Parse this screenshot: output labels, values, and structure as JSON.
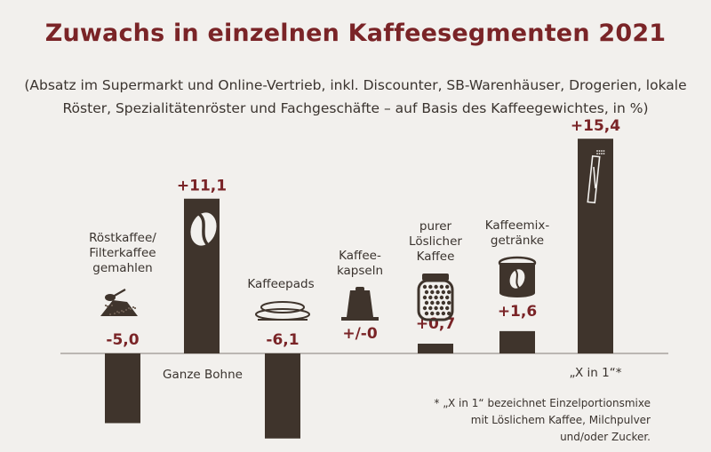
{
  "chart_data": {
    "type": "bar",
    "title": "Zuwachs in einzelnen Kaffeesegmenten 2021",
    "subtitle_line1": "(Absatz im Supermarkt und Online-Vertrieb, inkl. Discounter, SB-Warenhäuser, Drogerien, lokale",
    "subtitle_line2": "Röster, Spezialitätenröster und Fachgeschäfte – auf Basis des Kaffeegewichtes, in %)",
    "ylim": [
      -6.5,
      16
    ],
    "grid": false,
    "bars": [
      {
        "key": "roest",
        "value": -5.0,
        "value_label": "-5,0",
        "category_lines": [
          "Röstkaffee/",
          "Filterkaffee",
          "gemahlen"
        ],
        "icon": "ground-coffee-icon"
      },
      {
        "key": "bohne",
        "value": 11.1,
        "value_label": "+11,1",
        "category_lines": [
          "Ganze Bohne"
        ],
        "icon": "coffee-bean-icon"
      },
      {
        "key": "pads",
        "value": -6.1,
        "value_label": "-6,1",
        "category_lines": [
          "Kaffeepads"
        ],
        "icon": "coffee-pad-icon"
      },
      {
        "key": "kapseln",
        "value": 0.0,
        "value_label": "+/-0",
        "category_lines": [
          "Kaffee-",
          "kapseln"
        ],
        "icon": "coffee-capsule-icon"
      },
      {
        "key": "loeslich",
        "value": 0.7,
        "value_label": "+0,7",
        "category_lines": [
          "purer",
          "Löslicher",
          "Kaffee"
        ],
        "icon": "instant-coffee-jar-icon"
      },
      {
        "key": "mix",
        "value": 1.6,
        "value_label": "+1,6",
        "category_lines": [
          "Kaffeemix-",
          "getränke"
        ],
        "icon": "coffee-tin-icon"
      },
      {
        "key": "xin1",
        "value": 15.4,
        "value_label": "+15,4",
        "category_lines": [
          "„X in 1“*"
        ],
        "icon": "stick-pack-icon"
      }
    ]
  },
  "footnote": {
    "line1": "* „X in 1“ bezeichnet Einzelportionsmixe",
    "line2": "mit Löslichem Kaffee, Milchpulver",
    "line3": "und/oder Zucker."
  },
  "colors": {
    "bar": "#3f342c",
    "accent": "#7a2427",
    "background": "#f2f0ed",
    "axis": "#9a948e"
  }
}
